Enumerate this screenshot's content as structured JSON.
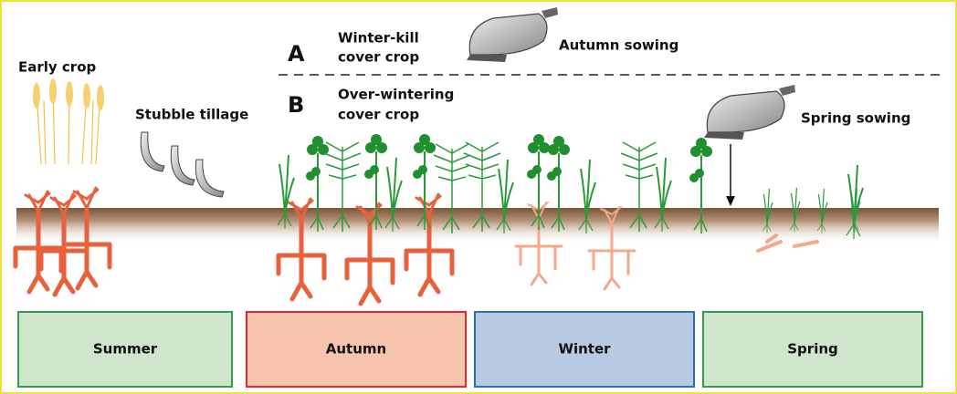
{
  "annotations": {
    "early_crop": "Early crop",
    "stubble_tillage": "Stubble tillage",
    "autumn_sowing": "Autumn sowing",
    "spring_sowing": "Spring sowing"
  },
  "scenarios": [
    {
      "letter": "A",
      "label": [
        "Winter-kill",
        "cover crop"
      ]
    },
    {
      "letter": "B",
      "label": [
        "Over-wintering",
        "cover crop"
      ]
    }
  ],
  "seasons": [
    "Summer",
    "Autumn",
    "Winter",
    "Spring"
  ]
}
